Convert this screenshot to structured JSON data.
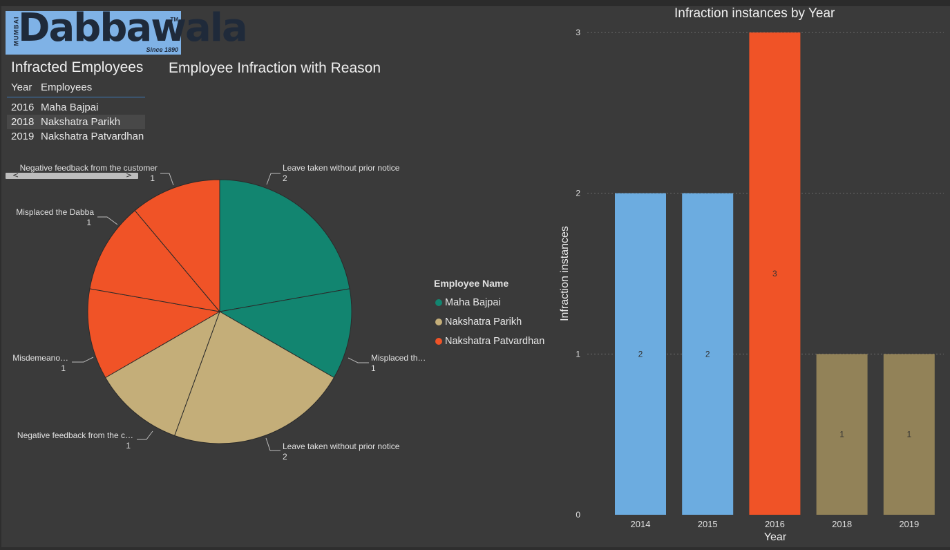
{
  "logo": {
    "side_text": "MUMBAI",
    "wordmark": "Dabbawala",
    "trademark": "TM",
    "since": "Since 1890"
  },
  "table": {
    "title": "Infracted Employees",
    "headers": {
      "year": "Year",
      "employees": "Employees"
    },
    "rows": [
      {
        "year": "2016",
        "employee": "Maha Bajpai"
      },
      {
        "year": "2018",
        "employee": "Nakshatra Parikh"
      },
      {
        "year": "2019",
        "employee": "Nakshatra Patvardhan"
      }
    ]
  },
  "scrollbar": {
    "left": "<",
    "right": ">"
  },
  "legend": {
    "title": "Employee Name",
    "items": [
      {
        "label": "Maha Bajpai",
        "color": "#128570"
      },
      {
        "label": "Nakshatra Parikh",
        "color": "#c4ae79"
      },
      {
        "label": "Nakshatra Patvardhan",
        "color": "#f05327"
      }
    ]
  },
  "chart_data": [
    {
      "type": "pie",
      "title": "Employee Infraction with Reason",
      "slices": [
        {
          "label": "Leave taken without prior notice",
          "value": 2,
          "series": "Maha Bajpai",
          "color": "#128570"
        },
        {
          "label": "Misplaced th…",
          "value": 1,
          "series": "Maha Bajpai",
          "color": "#128570"
        },
        {
          "label": "Leave taken without prior notice",
          "value": 2,
          "series": "Nakshatra Parikh",
          "color": "#c4ae79"
        },
        {
          "label": "Negative feedback from the c…",
          "value": 1,
          "series": "Nakshatra Parikh",
          "color": "#c4ae79"
        },
        {
          "label": "Misdemeano…",
          "value": 1,
          "series": "Nakshatra Patvardhan",
          "color": "#f05327"
        },
        {
          "label": "Misplaced the Dabba",
          "value": 1,
          "series": "Nakshatra Patvardhan",
          "color": "#f05327"
        },
        {
          "label": "Negative feedback from the customer",
          "value": 1,
          "series": "Nakshatra Patvardhan",
          "color": "#f05327"
        }
      ]
    },
    {
      "type": "bar",
      "title": "Infraction instances by Year",
      "xlabel": "Year",
      "ylabel": "Infraction instances",
      "categories": [
        "2014",
        "2015",
        "2016",
        "2018",
        "2019"
      ],
      "values": [
        2,
        2,
        3,
        1,
        1
      ],
      "colors": [
        "#6cace0",
        "#6cace0",
        "#f05327",
        "#928258",
        "#928258"
      ],
      "ylim": [
        0,
        3
      ],
      "yticks": [
        0,
        1,
        2,
        3
      ],
      "grid": true
    }
  ]
}
